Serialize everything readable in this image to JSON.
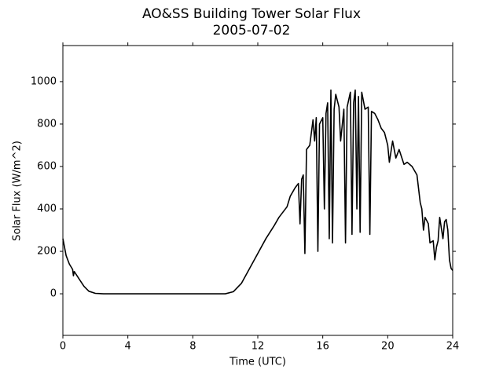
{
  "chart_data": {
    "type": "line",
    "title": "AO&SS Building Tower Solar Flux",
    "subtitle": "2005-07-02",
    "x_label": "Time (UTC)",
    "y_label": "Solar Flux (W/m^2)",
    "xlim": [
      0,
      24
    ],
    "xticks": [
      0,
      4,
      8,
      12,
      16,
      20,
      24
    ],
    "ylim": [
      -196,
      1170
    ],
    "yticks": [
      0,
      200,
      400,
      600,
      800,
      1000
    ],
    "grid": false,
    "series": [
      {
        "color": "#000000",
        "x": [
          0,
          0.2,
          0.4,
          0.6,
          0.65,
          0.7,
          1.0,
          1.3,
          1.6,
          2.0,
          2.5,
          10,
          10.5,
          11,
          11.5,
          12,
          12.5,
          13,
          13.3,
          13.6,
          13.8,
          14,
          14.3,
          14.5,
          14.6,
          14.7,
          14.8,
          14.9,
          15.0,
          15.2,
          15.4,
          15.5,
          15.6,
          15.7,
          15.8,
          16.0,
          16.1,
          16.2,
          16.3,
          16.4,
          16.5,
          16.6,
          16.7,
          16.8,
          17.0,
          17.1,
          17.3,
          17.4,
          17.5,
          17.7,
          17.8,
          17.9,
          18.0,
          18.1,
          18.2,
          18.3,
          18.4,
          18.6,
          18.8,
          18.9,
          19.0,
          19.2,
          19.4,
          19.6,
          19.8,
          20.0,
          20.1,
          20.3,
          20.5,
          20.7,
          21.0,
          21.2,
          21.5,
          21.8,
          22.0,
          22.1,
          22.2,
          22.3,
          22.5,
          22.6,
          22.8,
          22.9,
          23.0,
          23.1,
          23.2,
          23.4,
          23.5,
          23.6,
          23.7,
          23.8,
          23.9,
          24.0
        ],
        "values": [
          260,
          180,
          140,
          115,
          85,
          105,
          70,
          35,
          12,
          2,
          0,
          0,
          10,
          50,
          120,
          190,
          260,
          320,
          360,
          390,
          410,
          460,
          500,
          520,
          330,
          540,
          560,
          190,
          680,
          700,
          820,
          720,
          830,
          200,
          800,
          830,
          400,
          850,
          900,
          260,
          960,
          240,
          870,
          940,
          880,
          720,
          870,
          240,
          880,
          950,
          280,
          900,
          960,
          400,
          930,
          290,
          950,
          870,
          880,
          280,
          860,
          850,
          820,
          780,
          760,
          700,
          620,
          720,
          640,
          680,
          610,
          620,
          600,
          560,
          430,
          400,
          300,
          360,
          330,
          240,
          250,
          160,
          220,
          250,
          360,
          260,
          340,
          350,
          300,
          160,
          120,
          110
        ]
      }
    ]
  }
}
